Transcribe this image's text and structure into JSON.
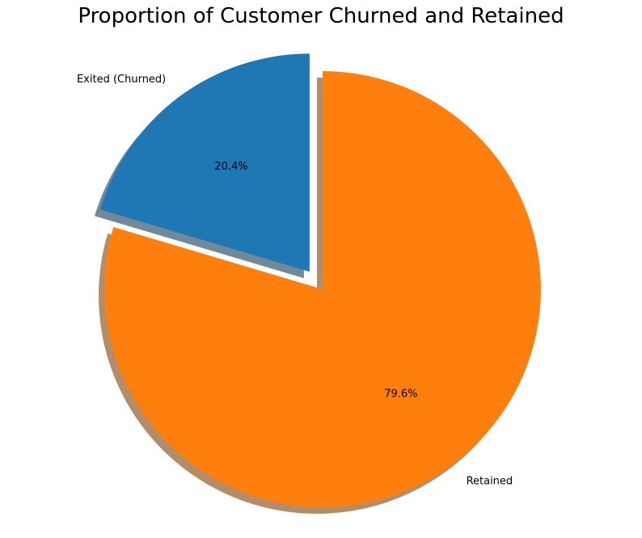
{
  "chart_data": {
    "type": "pie",
    "title": "Proportion of Customer Churned and Retained",
    "categories": [
      "Exited (Churned)",
      "Retained"
    ],
    "values": [
      20.4,
      79.6
    ],
    "percent_labels": [
      "20.4%",
      "79.6%"
    ],
    "colors": [
      "#1f77b4",
      "#ff7f0e"
    ],
    "explode": [
      0.1,
      0
    ],
    "start_angle_deg": 90,
    "direction": "counterclockwise",
    "shadow": true,
    "legend": "none"
  }
}
